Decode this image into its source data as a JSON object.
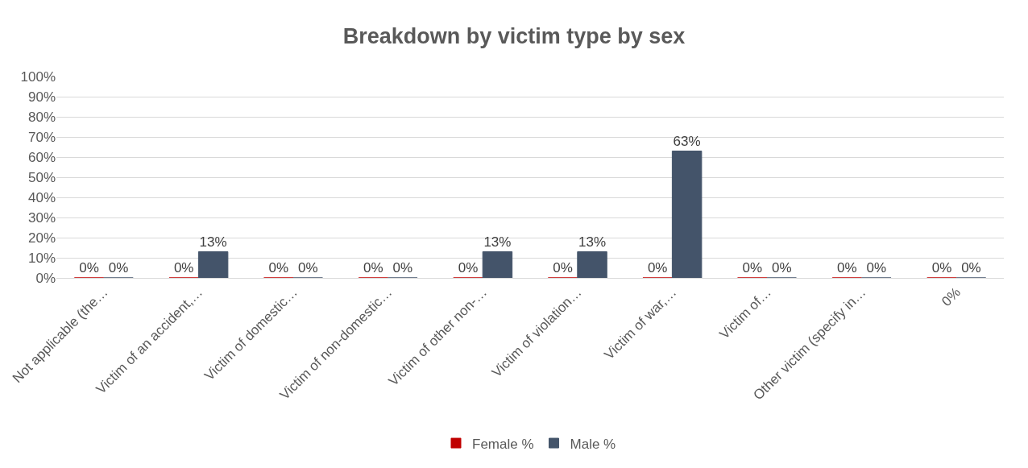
{
  "chart_data": {
    "type": "bar",
    "title": "Breakdown by victim type by sex",
    "categories": [
      "Not applicable (the…",
      "Victim of an accident,…",
      "Victim of domestic…",
      "Victim of non-domestic…",
      "Victim of other non-…",
      "Victim of violation…",
      "Victim of war,…",
      "Victim of…",
      "Other victim (specify in…",
      "0%"
    ],
    "series": [
      {
        "name": "Female %",
        "color": "#c00000",
        "values": [
          0,
          0,
          0,
          0,
          0,
          0,
          0,
          0,
          0,
          0
        ],
        "value_labels": [
          "0%",
          "0%",
          "0%",
          "0%",
          "0%",
          "0%",
          "0%",
          "0%",
          "0%",
          "0%"
        ]
      },
      {
        "name": "Male %",
        "color": "#44546a",
        "values": [
          0,
          13,
          0,
          0,
          13,
          13,
          63,
          0,
          0,
          0
        ],
        "value_labels": [
          "0%",
          "13%",
          "0%",
          "0%",
          "13%",
          "13%",
          "63%",
          "0%",
          "0%",
          "0%"
        ]
      }
    ],
    "ylim": [
      0,
      100
    ],
    "yticks": [
      {
        "value": 0,
        "label": "0%"
      },
      {
        "value": 10,
        "label": "10%"
      },
      {
        "value": 20,
        "label": "20%"
      },
      {
        "value": 30,
        "label": "30%"
      },
      {
        "value": 40,
        "label": "40%"
      },
      {
        "value": 50,
        "label": "50%"
      },
      {
        "value": 60,
        "label": "60%"
      },
      {
        "value": 70,
        "label": "70%"
      },
      {
        "value": 80,
        "label": "80%"
      },
      {
        "value": 90,
        "label": "90%"
      },
      {
        "value": 100,
        "label": "100%"
      }
    ],
    "grid": "y",
    "legend": "bottom"
  }
}
